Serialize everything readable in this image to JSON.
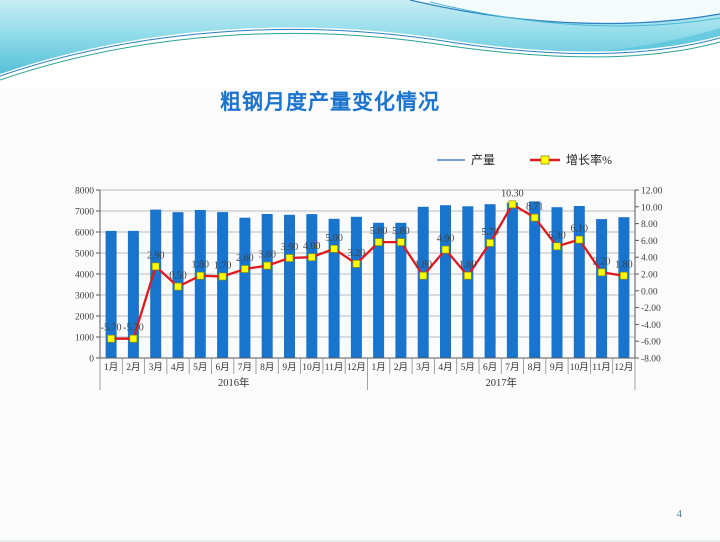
{
  "slide": {
    "title": "粗钢月度产量变化情况",
    "page_number": "4"
  },
  "legend": {
    "items": [
      {
        "label": "产量",
        "swatch": "line",
        "color": "#4f81bd"
      },
      {
        "label": "增长率%",
        "swatch": "line-marker",
        "color": "#e0191f",
        "marker_color": "#ffff00"
      }
    ]
  },
  "chart_data": {
    "type": "bar+line",
    "title": "粗钢月度产量变化情况",
    "categories": [
      "1月",
      "2月",
      "3月",
      "4月",
      "5月",
      "6月",
      "7月",
      "8月",
      "9月",
      "10月",
      "11月",
      "12月",
      "1月",
      "2月",
      "3月",
      "4月",
      "5月",
      "6月",
      "7月",
      "8月",
      "9月",
      "10月",
      "11月",
      "12月"
    ],
    "year_groups": [
      {
        "label": "2016年",
        "span": 12
      },
      {
        "label": "2017年",
        "span": 12
      }
    ],
    "series": [
      {
        "name": "产量",
        "type": "bar",
        "axis": "left",
        "color": "#1874cd",
        "values": [
          6053,
          6053,
          7065,
          6942,
          7050,
          6947,
          6681,
          6857,
          6817,
          6851,
          6629,
          6722,
          6438,
          6438,
          7200,
          7278,
          7226,
          7323,
          7402,
          7459,
          7183,
          7236,
          6615,
          6705
        ]
      },
      {
        "name": "增长率%",
        "type": "line",
        "axis": "right",
        "color": "#e0191f",
        "marker_color": "#ffff00",
        "values": [
          -5.7,
          -5.7,
          2.9,
          0.5,
          1.8,
          1.7,
          2.6,
          3.0,
          3.9,
          4.0,
          5.0,
          3.2,
          5.8,
          5.8,
          1.8,
          4.9,
          1.8,
          5.7,
          10.3,
          8.71,
          5.3,
          6.1,
          2.2,
          1.8
        ],
        "labels": [
          "-5.70",
          "-5.70",
          "2.90",
          "0.50",
          "1.80",
          "1.70",
          "2.60",
          "3.00",
          "3.90",
          "4.00",
          "5.00",
          "3.20",
          "5.80",
          "5.80",
          "1.80",
          "4.90",
          "1.80",
          "5.70",
          "10.30",
          "8.71",
          "5.30",
          "6.10",
          "2.20",
          "1.80"
        ]
      }
    ],
    "left_axis": {
      "min": 0,
      "max": 8000,
      "step": 1000,
      "tick_labels": [
        "0",
        "1000",
        "2000",
        "3000",
        "4000",
        "5000",
        "6000",
        "7000",
        "8000"
      ]
    },
    "right_axis": {
      "min": -8,
      "max": 12,
      "step": 2,
      "tick_labels": [
        "-8.00",
        "-6.00",
        "-4.00",
        "-2.00",
        "0.00",
        "2.00",
        "4.00",
        "6.00",
        "8.00",
        "10.00",
        "12.00"
      ]
    },
    "grid": true,
    "legend_position": "top-right"
  }
}
